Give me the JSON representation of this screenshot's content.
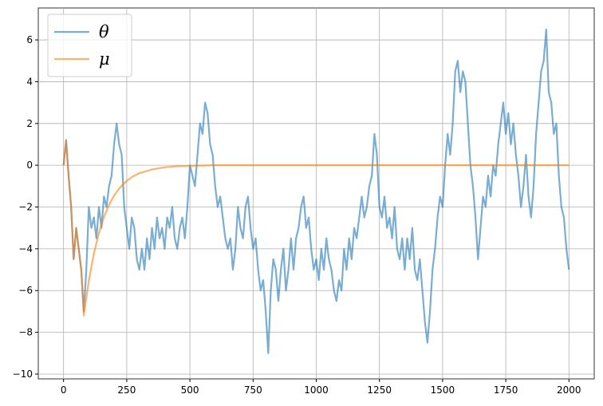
{
  "chart_data": {
    "type": "line",
    "xlim": [
      -100,
      2100
    ],
    "ylim": [
      -10.23,
      7.53
    ],
    "xticks": [
      0,
      250,
      500,
      750,
      1000,
      1250,
      1500,
      1750,
      2000
    ],
    "yticks": [
      {
        "value": -10,
        "label": "−10"
      },
      {
        "value": -8,
        "label": "−8"
      },
      {
        "value": -6,
        "label": "−6"
      },
      {
        "value": -4,
        "label": "−4"
      },
      {
        "value": -2,
        "label": "−2"
      },
      0,
      2,
      4,
      6
    ],
    "grid": true,
    "legend": "upper left",
    "series": [
      {
        "name": "θ",
        "color": "#1f77b4",
        "x": [
          0,
          10,
          20,
          30,
          40,
          50,
          60,
          70,
          80,
          90,
          100,
          110,
          120,
          130,
          140,
          150,
          160,
          170,
          180,
          190,
          200,
          210,
          220,
          230,
          240,
          250,
          260,
          270,
          280,
          290,
          300,
          310,
          320,
          330,
          340,
          350,
          360,
          370,
          380,
          390,
          400,
          410,
          420,
          430,
          440,
          450,
          460,
          470,
          480,
          490,
          500,
          510,
          520,
          530,
          540,
          550,
          560,
          570,
          580,
          590,
          600,
          610,
          620,
          630,
          640,
          650,
          660,
          670,
          680,
          690,
          700,
          710,
          720,
          730,
          740,
          750,
          760,
          770,
          780,
          790,
          800,
          810,
          820,
          830,
          840,
          850,
          860,
          870,
          880,
          890,
          900,
          910,
          920,
          930,
          940,
          950,
          960,
          970,
          980,
          990,
          1000,
          1010,
          1020,
          1030,
          1040,
          1050,
          1060,
          1070,
          1080,
          1090,
          1100,
          1110,
          1120,
          1130,
          1140,
          1150,
          1160,
          1170,
          1180,
          1190,
          1200,
          1210,
          1220,
          1230,
          1240,
          1250,
          1260,
          1270,
          1280,
          1290,
          1300,
          1310,
          1320,
          1330,
          1340,
          1350,
          1360,
          1370,
          1380,
          1390,
          1400,
          1410,
          1420,
          1430,
          1440,
          1450,
          1460,
          1470,
          1480,
          1490,
          1500,
          1510,
          1520,
          1530,
          1540,
          1550,
          1560,
          1570,
          1580,
          1590,
          1600,
          1610,
          1620,
          1630,
          1640,
          1650,
          1660,
          1670,
          1680,
          1690,
          1700,
          1710,
          1720,
          1730,
          1740,
          1750,
          1760,
          1770,
          1780,
          1790,
          1800,
          1810,
          1820,
          1830,
          1840,
          1850,
          1860,
          1870,
          1880,
          1890,
          1900,
          1910,
          1920,
          1930,
          1940,
          1950,
          1960,
          1970,
          1980,
          1990,
          2000
        ],
        "values": [
          0,
          1.2,
          -0.5,
          -2,
          -4.5,
          -3,
          -4,
          -5,
          -7,
          -5,
          -2,
          -3,
          -2.5,
          -3.5,
          -2,
          -3,
          -1.5,
          -2,
          -1,
          -0.5,
          1,
          2,
          1,
          0.5,
          -2,
          -3,
          -4,
          -2.5,
          -3,
          -4.5,
          -5,
          -4,
          -5,
          -3.5,
          -4.5,
          -3,
          -4,
          -2.5,
          -3.5,
          -3,
          -4,
          -2.5,
          -3,
          -2,
          -3.5,
          -4,
          -3,
          -2.5,
          -3.5,
          -2,
          0,
          -0.5,
          -1,
          0.5,
          2,
          1.5,
          3,
          2.5,
          1,
          0.5,
          -1,
          -2,
          -1.5,
          -2.5,
          -3.5,
          -4,
          -3.5,
          -5,
          -4,
          -2,
          -3,
          -3.5,
          -2,
          -1.5,
          -3,
          -4,
          -3.5,
          -5,
          -6,
          -5.5,
          -7,
          -9,
          -6,
          -4.5,
          -5,
          -6.5,
          -5,
          -4,
          -6,
          -5,
          -3.5,
          -5,
          -3.5,
          -3,
          -2,
          -1.5,
          -3,
          -2.5,
          -4,
          -5,
          -4.5,
          -5.5,
          -4,
          -5,
          -3.5,
          -4.5,
          -5,
          -6,
          -6.5,
          -5.5,
          -6,
          -4,
          -5,
          -3.5,
          -4.5,
          -3,
          -3.5,
          -2.5,
          -1.5,
          -2.5,
          -2,
          -1,
          -0.5,
          1.5,
          0.5,
          -2,
          -2.5,
          -1.5,
          -3,
          -2.5,
          -3.5,
          -2,
          -4,
          -4.5,
          -3.5,
          -5,
          -3.5,
          -4.5,
          -3,
          -5,
          -5.5,
          -4.5,
          -6,
          -7.5,
          -8.5,
          -7,
          -5,
          -4,
          -2.5,
          -1.5,
          -2,
          0,
          1.5,
          0.5,
          2,
          4.5,
          5,
          3.5,
          4.5,
          4,
          2,
          0,
          -1,
          -2.5,
          -4.5,
          -3,
          -1.5,
          -2,
          -0.5,
          -1.5,
          0,
          -0.5,
          1,
          2,
          3,
          1.5,
          2.5,
          1,
          2,
          0.5,
          -0.5,
          -2,
          -1,
          0.5,
          -1.5,
          -2.5,
          -1,
          1.5,
          3,
          4.5,
          5,
          6.5,
          3.5,
          3,
          1.5,
          2,
          -0.5,
          -2,
          -2.5,
          -4,
          -5
        ]
      },
      {
        "name": "μ",
        "color": "#ff7f0e",
        "x": [
          0,
          10,
          20,
          30,
          40,
          50,
          60,
          70,
          80,
          100,
          120,
          140,
          160,
          180,
          200,
          225,
          250,
          275,
          300,
          350,
          400,
          450,
          500,
          600,
          2000
        ],
        "values": [
          0,
          1.2,
          -0.5,
          -2,
          -4.5,
          -3,
          -4,
          -5,
          -7.2,
          -5.52,
          -4.23,
          -3.24,
          -2.48,
          -1.9,
          -1.45,
          -1.04,
          -0.75,
          -0.53,
          -0.38,
          -0.2,
          -0.1,
          -0.05,
          -0.03,
          0,
          0
        ]
      }
    ]
  }
}
